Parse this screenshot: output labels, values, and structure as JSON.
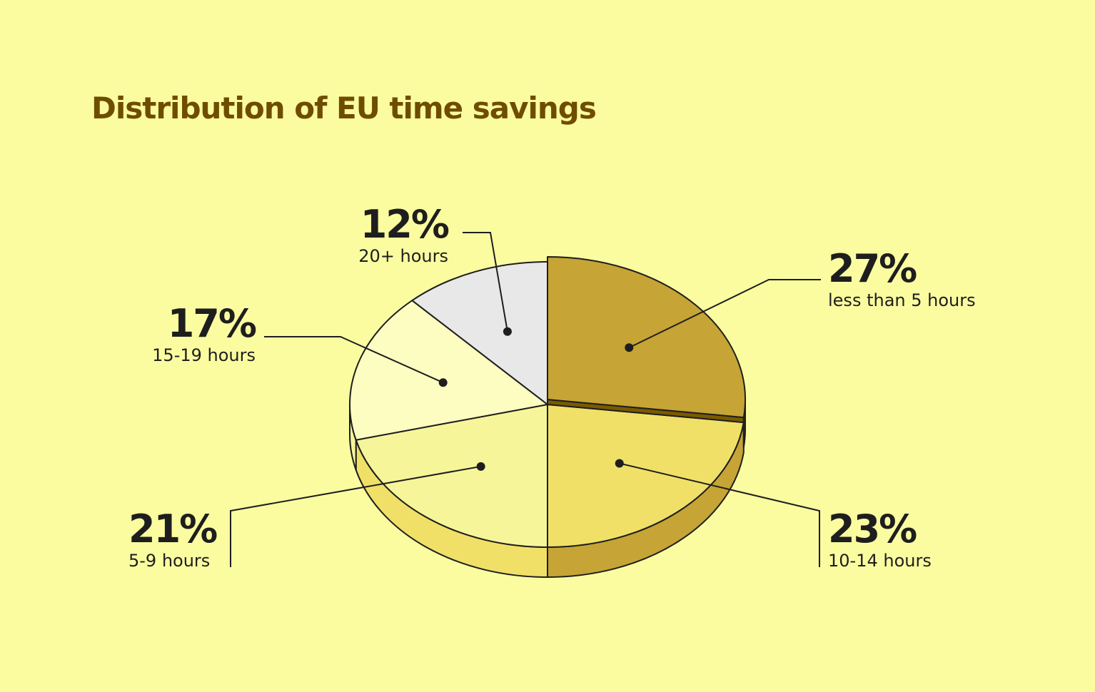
{
  "chart_data": {
    "type": "pie",
    "title": "Distribution of EU time savings",
    "categories": [
      "less than 5 hours",
      "10-14 hours",
      "5-9 hours",
      "15-19 hours",
      "20+ hours"
    ],
    "values": [
      27,
      23,
      21,
      17,
      12
    ],
    "value_labels": [
      "27%",
      "23%",
      "21%",
      "17%",
      "12%"
    ],
    "colors": [
      "#c6a435",
      "#f0e068",
      "#f6f59a",
      "#fdfdc2",
      "#e8e8e8"
    ]
  }
}
